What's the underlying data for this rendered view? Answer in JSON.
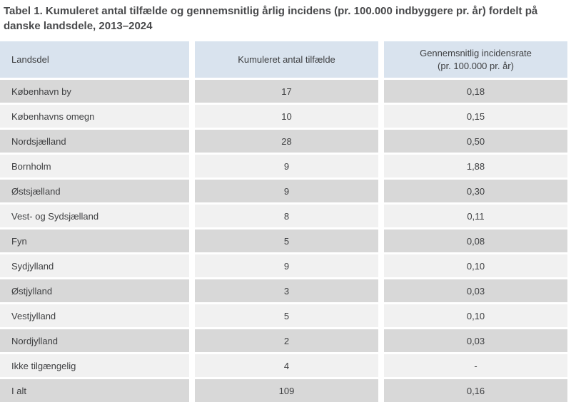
{
  "page": {
    "title": "Tabel 1. Kumuleret antal tilfælde og gennemsnitlig årlig incidens (pr. 100.000 indbyggere pr. år) fordelt på danske landsdele, 2013–2024"
  },
  "table": {
    "headers": {
      "landsdel": "Landsdel",
      "antal": "Kumuleret antal tilfælde",
      "rate_line1": "Gennemsnitlig incidensrate",
      "rate_line2": "(pr. 100.000 pr. år)"
    },
    "rows": [
      {
        "landsdel": "København by",
        "antal": "17",
        "rate": "0,18"
      },
      {
        "landsdel": "Københavns omegn",
        "antal": "10",
        "rate": "0,15"
      },
      {
        "landsdel": "Nordsjælland",
        "antal": "28",
        "rate": "0,50"
      },
      {
        "landsdel": "Bornholm",
        "antal": "9",
        "rate": "1,88"
      },
      {
        "landsdel": "Østsjælland",
        "antal": "9",
        "rate": "0,30"
      },
      {
        "landsdel": "Vest- og Sydsjælland",
        "antal": "8",
        "rate": "0,11"
      },
      {
        "landsdel": "Fyn",
        "antal": "5",
        "rate": "0,08"
      },
      {
        "landsdel": "Sydjylland",
        "antal": "9",
        "rate": "0,10"
      },
      {
        "landsdel": "Østjylland",
        "antal": "3",
        "rate": "0,03"
      },
      {
        "landsdel": "Vestjylland",
        "antal": "5",
        "rate": "0,10"
      },
      {
        "landsdel": "Nordjylland",
        "antal": "2",
        "rate": "0,03"
      },
      {
        "landsdel": "Ikke tilgængelig",
        "antal": "4",
        "rate": "-"
      },
      {
        "landsdel": "I alt",
        "antal": "109",
        "rate": "0,16"
      }
    ]
  },
  "colors": {
    "header_bg": "#d9e3ee",
    "row_dark_bg": "#d8d8d8",
    "row_light_bg": "#f1f1f1",
    "text": "#3f4042",
    "title_text": "#48494b"
  }
}
